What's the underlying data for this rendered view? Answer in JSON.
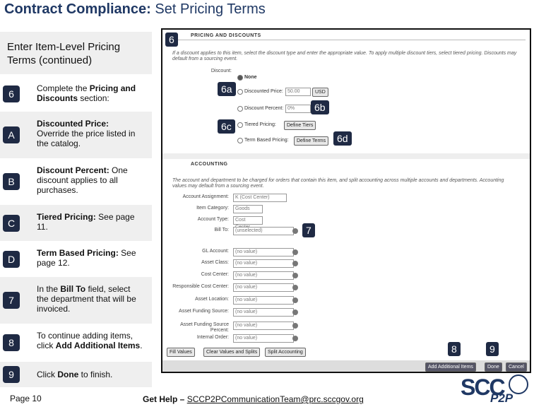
{
  "header": {
    "title_bold": "Contract Compliance:",
    "title_rest": "Set Pricing Terms"
  },
  "panel": {
    "heading_bold": "Enter Item-Level Pricing Terms",
    "heading_rest": "(continued)",
    "steps": [
      {
        "badge": "6",
        "parts": [
          "Complete the ",
          "Pricing and Discounts",
          " section:"
        ]
      },
      {
        "badge": "A",
        "parts": [
          "",
          "Discounted Price:",
          " Override the price listed in the catalog."
        ]
      },
      {
        "badge": "B",
        "parts": [
          "",
          "Discount Percent:",
          " One discount applies to all purchases."
        ]
      },
      {
        "badge": "C",
        "parts": [
          "",
          "Tiered Pricing:",
          " See page 11."
        ]
      },
      {
        "badge": "D",
        "parts": [
          "",
          "Term Based Pricing:",
          " See page 12."
        ]
      },
      {
        "badge": "7",
        "parts": [
          "In the ",
          "Bill To",
          " field, select the department that will be invoiced."
        ]
      },
      {
        "badge": "8",
        "parts": [
          "To continue adding items, click ",
          "Add Additional Items",
          "."
        ]
      },
      {
        "badge": "9",
        "parts": [
          "Click ",
          "Done",
          " to finish."
        ]
      }
    ]
  },
  "screenshot": {
    "pricing": {
      "heading": "PRICING AND DISCOUNTS",
      "instructions": "If a discount applies to this item, select the discount type and enter the appropriate value. To apply multiple discount tiers, select tiered pricing. Discounts may default from a sourcing event.",
      "discount_label": "Discount:",
      "options": [
        {
          "label": "None"
        },
        {
          "label": "Discounted Price:",
          "value": "50.00",
          "unit": "USD"
        },
        {
          "label": "Discount Percent:",
          "value": "0%"
        },
        {
          "label": "Tiered Pricing:",
          "button": "Define Tiers"
        },
        {
          "label": "Term Based Pricing:",
          "button": "Define Terms"
        }
      ]
    },
    "accounting": {
      "heading": "ACCOUNTING",
      "instructions": "The account and department to be charged for orders that contain this item, and split accounting across multiple accounts and departments. Accounting values may default from a sourcing event.",
      "fields": [
        {
          "label": "Account Assignment:",
          "value": "K (Cost Center)"
        },
        {
          "label": "Item Category:",
          "value": "Goods"
        },
        {
          "label": "Account Type:",
          "value": "Cost Center"
        },
        {
          "label": "Bill To:",
          "value": "(unselected)"
        },
        {
          "label": "GL Account:",
          "value": "(no value)"
        },
        {
          "label": "Asset Class:",
          "value": "(no value)"
        },
        {
          "label": "Cost Center:",
          "value": "(no value)"
        },
        {
          "label": "Responsible Cost Center:",
          "value": "(no value)"
        },
        {
          "label": "Asset Location:",
          "value": "(no value)"
        },
        {
          "label": "Asset Funding Source:",
          "value": "(no value)"
        },
        {
          "label": "Asset Funding Source Percent:",
          "value": "(no value)"
        },
        {
          "label": "Internal Order:",
          "value": "(no value)"
        }
      ],
      "buttons": [
        "Fill Values",
        "Clear Values and Splits",
        "Split Accounting"
      ]
    },
    "footer_buttons": [
      "Add Additional Items",
      "Done",
      "Cancel"
    ],
    "callouts": [
      "6",
      "6a",
      "6b",
      "6c",
      "6d",
      "7",
      "8",
      "9"
    ]
  },
  "footer": {
    "page": "Page 10",
    "help": "Get Help – ",
    "email": "SCCP2PCommunicationTeam@prc.sccgov.org",
    "logo_main": "SCC",
    "logo_sub": "P2P"
  }
}
